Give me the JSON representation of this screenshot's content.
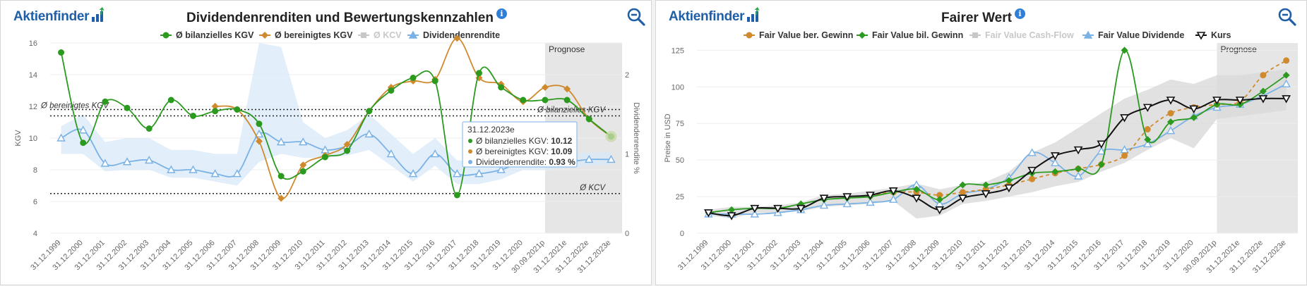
{
  "brand": "Aktienfinder",
  "colors": {
    "green": "#2b9a1f",
    "orange": "#d08a2e",
    "blue": "#7ab2e6",
    "gray": "#c8c8c8",
    "black": "#111111",
    "band": "#dfe3e8",
    "prognose": "#e6e6e6"
  },
  "left": {
    "title": "Dividendenrenditen und Bewertungskennzahlen",
    "info_icon": "info-icon",
    "zoom_icon": "zoom-out-icon",
    "legend": [
      {
        "label": "Ø bilanzielles KGV",
        "color": "#2b9a1f",
        "marker": "circle",
        "enabled": true
      },
      {
        "label": "Ø bereinigtes KGV",
        "color": "#d08a2e",
        "marker": "diamond",
        "enabled": true
      },
      {
        "label": "Ø KCV",
        "color": "#c8c8c8",
        "marker": "square",
        "enabled": false
      },
      {
        "label": "Dividendenrendite",
        "color": "#7ab2e6",
        "marker": "triangle",
        "enabled": true
      }
    ],
    "prognose_label": "Prognose",
    "annotations": {
      "ber_kgv": "Ø bereinigtes KGV",
      "bil_kgv": "Ø bilanzielles KGV",
      "kcv": "Ø KCV"
    },
    "tooltip": {
      "date": "31.12.2023e",
      "rows": [
        {
          "label": "Ø bilanzielles KGV: ",
          "value": "10.12",
          "color": "#2b9a1f"
        },
        {
          "label": "Ø bereinigtes KGV: ",
          "value": "10.09",
          "color": "#d08a2e"
        },
        {
          "label": "Dividendenrendite: ",
          "value": "0.93 %",
          "color": "#7ab2e6"
        }
      ]
    }
  },
  "right": {
    "title": "Fairer Wert",
    "info_icon": "info-icon",
    "zoom_icon": "zoom-out-icon",
    "legend": [
      {
        "label": "Fair Value ber. Gewinn",
        "color": "#d08a2e",
        "marker": "circle",
        "enabled": true
      },
      {
        "label": "Fair Value bil. Gewinn",
        "color": "#2b9a1f",
        "marker": "diamond",
        "enabled": true
      },
      {
        "label": "Fair Value Cash-Flow",
        "color": "#c8c8c8",
        "marker": "square",
        "enabled": false
      },
      {
        "label": "Fair Value Dividende",
        "color": "#7ab2e6",
        "marker": "triangle",
        "enabled": true
      },
      {
        "label": "Kurs",
        "color": "#111111",
        "marker": "triangle-down",
        "enabled": true
      }
    ],
    "prognose_label": "Prognose"
  },
  "chart_data": [
    {
      "type": "line",
      "title": "Dividendenrenditen und Bewertungskennzahlen",
      "xlabel": "",
      "ylabel": "KGV",
      "y2label": "Dividendenrendite %",
      "categories": [
        "31.12.1999",
        "31.12.2000",
        "31.12.2001",
        "31.12.2002",
        "31.12.2003",
        "31.12.2004",
        "31.12.2005",
        "31.12.2006",
        "31.12.2007",
        "31.12.2008",
        "31.12.2009",
        "31.12.2010",
        "31.12.2011",
        "31.12.2012",
        "31.12.2013",
        "31.12.2014",
        "31.12.2015",
        "31.12.2016",
        "31.12.2017",
        "31.12.2018",
        "31.12.2019",
        "31.12.2020",
        "30.09.2021p",
        "31.12.2021e",
        "31.12.2022e",
        "31.12.2023e"
      ],
      "ylim": [
        4,
        16
      ],
      "yticks": [
        4,
        6,
        8,
        10,
        12,
        14,
        16
      ],
      "y2lim": [
        0,
        2.4
      ],
      "y2ticks": [
        0,
        1,
        2
      ],
      "prognose_from_index": 22.5,
      "reference_lines": [
        {
          "label": "Ø bereinigtes KGV",
          "value": 11.8
        },
        {
          "label": "Ø bilanzielles KGV",
          "value": 11.4
        },
        {
          "label": "Ø KCV",
          "value": 6.5
        }
      ],
      "series": [
        {
          "name": "Ø bilanzielles KGV",
          "axis": "y",
          "values": [
            15.4,
            9.7,
            12.3,
            11.9,
            10.6,
            12.4,
            11.4,
            11.7,
            11.8,
            10.9,
            7.6,
            7.9,
            8.8,
            9.2,
            11.7,
            13.0,
            13.8,
            13.6,
            6.4,
            14.1,
            13.2,
            12.4,
            12.4,
            12.4,
            11.2,
            10.1
          ]
        },
        {
          "name": "Ø bereinigtes KGV",
          "axis": "y",
          "values": [
            null,
            null,
            null,
            null,
            null,
            null,
            null,
            12.0,
            11.8,
            9.8,
            6.2,
            8.3,
            8.9,
            9.6,
            11.7,
            13.2,
            13.6,
            13.7,
            16.3,
            13.8,
            13.4,
            12.3,
            13.2,
            13.1,
            11.2,
            10.1
          ]
        },
        {
          "name": "Dividendenrendite",
          "axis": "y2",
          "values": [
            1.2,
            1.3,
            0.88,
            0.9,
            0.92,
            0.8,
            0.8,
            0.75,
            0.75,
            1.25,
            1.15,
            1.15,
            1.05,
            1.1,
            1.25,
            1.0,
            0.75,
            1.0,
            0.75,
            0.75,
            0.8,
            0.9,
            0.9,
            0.9,
            0.93,
            0.93
          ]
        }
      ],
      "dividend_range": {
        "lower": [
          1.0,
          1.0,
          0.78,
          0.8,
          0.8,
          0.7,
          0.7,
          0.65,
          0.6,
          0.9,
          1.0,
          0.95,
          0.95,
          0.98,
          1.05,
          0.85,
          0.65,
          0.85,
          0.62,
          0.62,
          0.68,
          0.8,
          0.8,
          0.82,
          0.85,
          0.86
        ],
        "upper": [
          1.35,
          1.5,
          1.15,
          1.2,
          1.2,
          1.05,
          1.05,
          1.0,
          1.0,
          2.4,
          2.35,
          1.4,
          1.2,
          1.3,
          1.5,
          1.25,
          1.0,
          1.2,
          0.92,
          0.9,
          0.92,
          1.0,
          1.0,
          1.0,
          1.02,
          1.02
        ]
      }
    },
    {
      "type": "line",
      "title": "Fairer Wert",
      "xlabel": "",
      "ylabel": "Preise in USD",
      "categories": [
        "31.12.1999",
        "31.12.2000",
        "31.12.2001",
        "31.12.2002",
        "31.12.2003",
        "31.12.2004",
        "31.12.2005",
        "31.12.2006",
        "31.12.2007",
        "31.12.2008",
        "31.12.2009",
        "31.12.2010",
        "31.12.2011",
        "31.12.2012",
        "31.12.2013",
        "31.12.2014",
        "31.12.2015",
        "31.12.2016",
        "31.12.2017",
        "31.12.2018",
        "31.12.2019",
        "31.12.2020",
        "30.09.2021p",
        "31.12.2021e",
        "31.12.2022e",
        "31.12.2023e"
      ],
      "ylim": [
        0,
        130
      ],
      "yticks": [
        0,
        25,
        50,
        75,
        100,
        125
      ],
      "prognose_from_index": 22.5,
      "series": [
        {
          "name": "Fair Value ber. Gewinn",
          "values": [
            null,
            null,
            null,
            null,
            null,
            null,
            null,
            26,
            28,
            28,
            26,
            28,
            30,
            33,
            37,
            41,
            44,
            47,
            53,
            71,
            82,
            86,
            88,
            90,
            108,
            118
          ]
        },
        {
          "name": "Fair Value bil. Gewinn",
          "values": [
            14,
            16,
            17,
            17,
            20,
            23,
            24,
            25,
            28,
            30,
            23,
            33,
            33,
            36,
            41,
            42,
            44,
            47,
            125,
            64,
            76,
            79,
            88,
            88,
            97,
            108
          ]
        },
        {
          "name": "Fair Value Dividende",
          "values": [
            13,
            13,
            13,
            14,
            16,
            19,
            20,
            21,
            23,
            33,
            20,
            27,
            30,
            38,
            55,
            48,
            39,
            56,
            57,
            61,
            70,
            80,
            86,
            88,
            94,
            102
          ]
        },
        {
          "name": "Kurs",
          "values": [
            14,
            12,
            17,
            17,
            17,
            24,
            25,
            26,
            29,
            24,
            16,
            24,
            27,
            31,
            43,
            53,
            57,
            61,
            79,
            86,
            91,
            85,
            91,
            91,
            92,
            92
          ]
        }
      ],
      "range": {
        "lower": [
          12,
          10,
          14,
          14,
          15,
          18,
          19,
          20,
          22,
          10,
          12,
          20,
          22,
          25,
          28,
          32,
          35,
          42,
          48,
          57,
          65,
          58,
          78,
          80,
          82,
          84
        ],
        "upper": [
          16,
          18,
          18,
          19,
          21,
          26,
          27,
          29,
          31,
          34,
          30,
          33,
          35,
          42,
          55,
          62,
          72,
          82,
          92,
          98,
          105,
          102,
          108,
          108,
          110,
          112
        ]
      }
    }
  ]
}
